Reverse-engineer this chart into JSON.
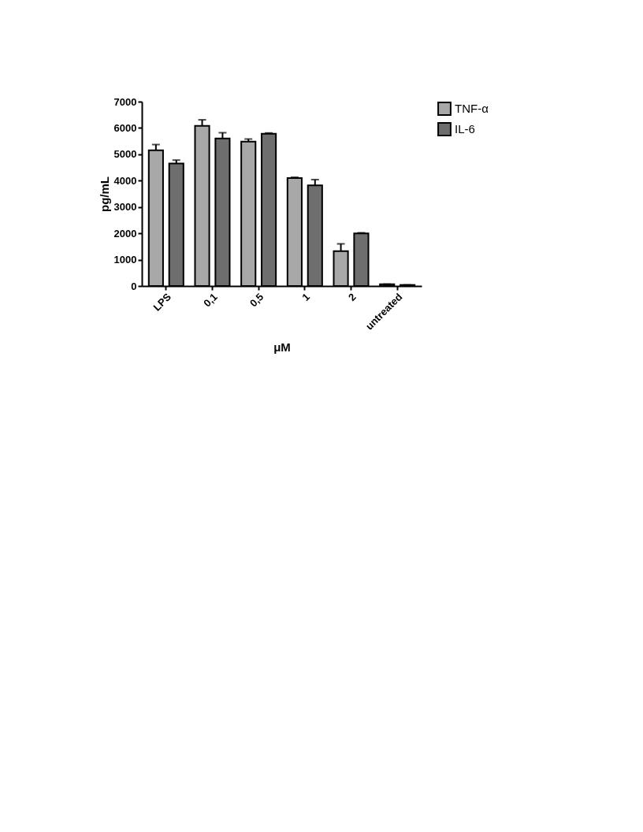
{
  "chart_data": {
    "type": "bar",
    "xlabel": "μM",
    "ylabel": "pg/mL",
    "categories": [
      "LPS",
      "0,1",
      "0,5",
      "1",
      "2",
      "untreated"
    ],
    "series": [
      {
        "name": "TNF-α",
        "color": "#a8a8a8",
        "values": [
          5150,
          6080,
          5480,
          4100,
          1320,
          70
        ],
        "errors": [
          [
            5150,
            5370
          ],
          [
            6080,
            6310
          ],
          [
            5480,
            5580
          ],
          [
            4100,
            4130
          ],
          [
            1320,
            1600
          ],
          [
            70,
            70
          ]
        ]
      },
      {
        "name": "IL-6",
        "color": "#6e6e6e",
        "values": [
          4650,
          5600,
          5780,
          3820,
          2000,
          40
        ],
        "errors": [
          [
            4650,
            4780
          ],
          [
            5600,
            5820
          ],
          [
            5780,
            5810
          ],
          [
            3820,
            4040
          ],
          [
            2000,
            2020
          ],
          [
            40,
            40
          ]
        ]
      }
    ],
    "ylim": [
      0,
      7000
    ],
    "yticks": [
      0,
      1000,
      2000,
      3000,
      4000,
      5000,
      6000,
      7000
    ],
    "grid": false,
    "legend": "top right"
  }
}
